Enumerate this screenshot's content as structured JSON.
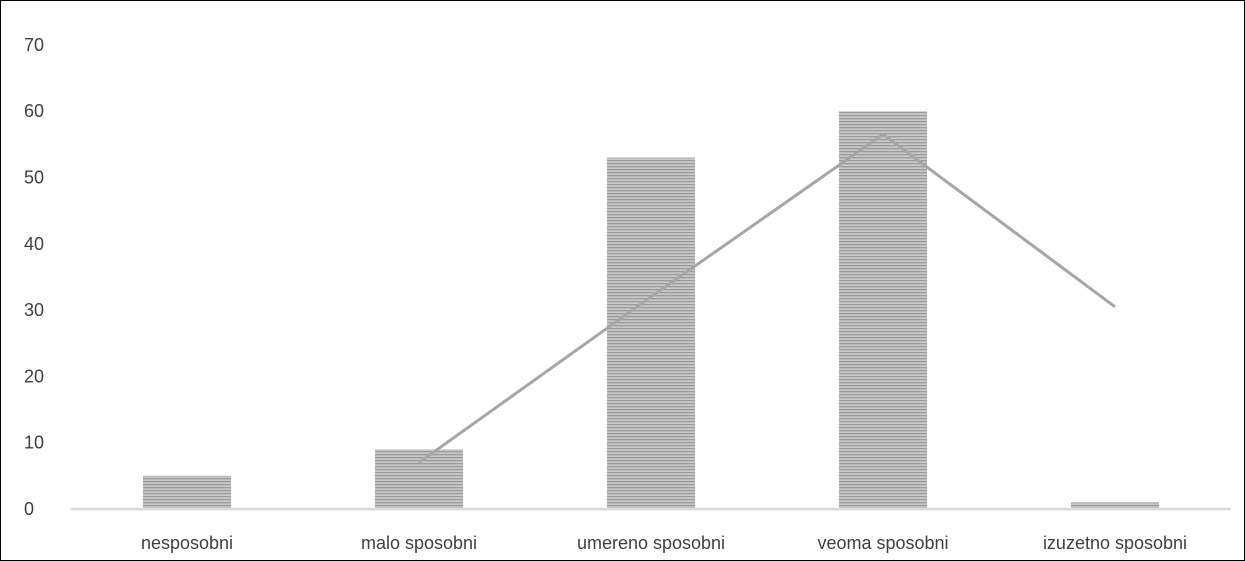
{
  "chart_data": {
    "type": "bar",
    "categories": [
      "nesposobni",
      "malo sposobni",
      "umereno sposobni",
      "veoma sposobni",
      "izuzetno sposobni"
    ],
    "series": [
      {
        "type": "bar",
        "values": [
          5,
          9,
          53,
          60,
          1
        ]
      },
      {
        "type": "line",
        "values": [
          null,
          7,
          32,
          56.5,
          30.5
        ]
      }
    ],
    "title": "",
    "xlabel": "",
    "ylabel": "",
    "ylim": [
      0,
      70
    ],
    "yticks": [
      "0",
      "10",
      "20",
      "30",
      "40",
      "50",
      "60",
      "70"
    ],
    "grid": false,
    "legend": "none",
    "bar_fill": "#c9c9c9",
    "bar_stripe": "#9a9a9a",
    "line_color": "#a6a6a6",
    "axis_color": "#d9d9d9"
  }
}
